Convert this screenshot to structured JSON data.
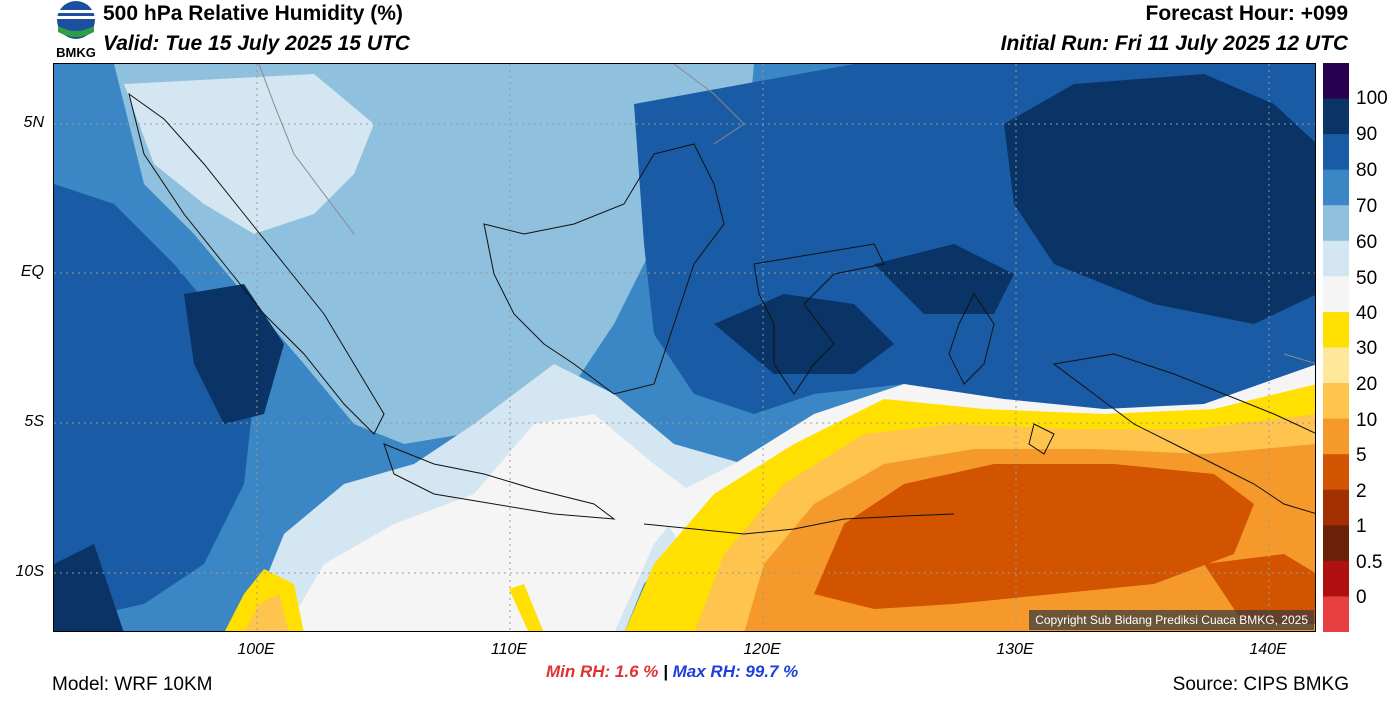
{
  "header": {
    "title": "500 hPa Relative Humidity (%)",
    "valid": "Valid: Tue 15 July 2025 15 UTC",
    "forecast_hour": "Forecast Hour: +099",
    "initial_run": "Initial Run: Fri 11 July 2025 12 UTC",
    "logo_text": "BMKG"
  },
  "map": {
    "lat_labels": [
      "5N",
      "EQ",
      "5S",
      "10S"
    ],
    "lon_labels": [
      "100E",
      "110E",
      "120E",
      "130E",
      "140E"
    ],
    "copyright": "Copyright Sub Bidang Prediksi Cuaca BMKG, 2025",
    "colors": {
      "humid_very_dark": "#0a3366",
      "humid_dark": "#1a5ba6",
      "humid_mid": "#3b86c4",
      "humid_light": "#8fc0de",
      "humid_pale": "#d3e6f1",
      "near_white": "#f5f5f5",
      "dry_yellow": "#ffe000",
      "dry_orange": "#f59a2a",
      "dry_dark_orange": "#d35400"
    }
  },
  "colorbar": {
    "labels": [
      "100",
      "90",
      "80",
      "70",
      "60",
      "50",
      "40",
      "30",
      "20",
      "10",
      "5",
      "2",
      "1",
      "0.5",
      "0"
    ],
    "colors": [
      "#2a0050",
      "#0a3366",
      "#1a5ba6",
      "#3b86c4",
      "#8fc0de",
      "#d3e6f1",
      "#f5f5f5",
      "#ffe000",
      "#ffe89a",
      "#ffc44d",
      "#f59a2a",
      "#d35400",
      "#a33000",
      "#6b2008",
      "#b01010",
      "#e84040"
    ]
  },
  "stats": {
    "min_label": "Min RH:   1.6 %",
    "separator": "|",
    "max_label": "Max RH:  99.7 %"
  },
  "footer": {
    "model": "Model: WRF 10KM",
    "source": "Source: CIPS BMKG"
  }
}
